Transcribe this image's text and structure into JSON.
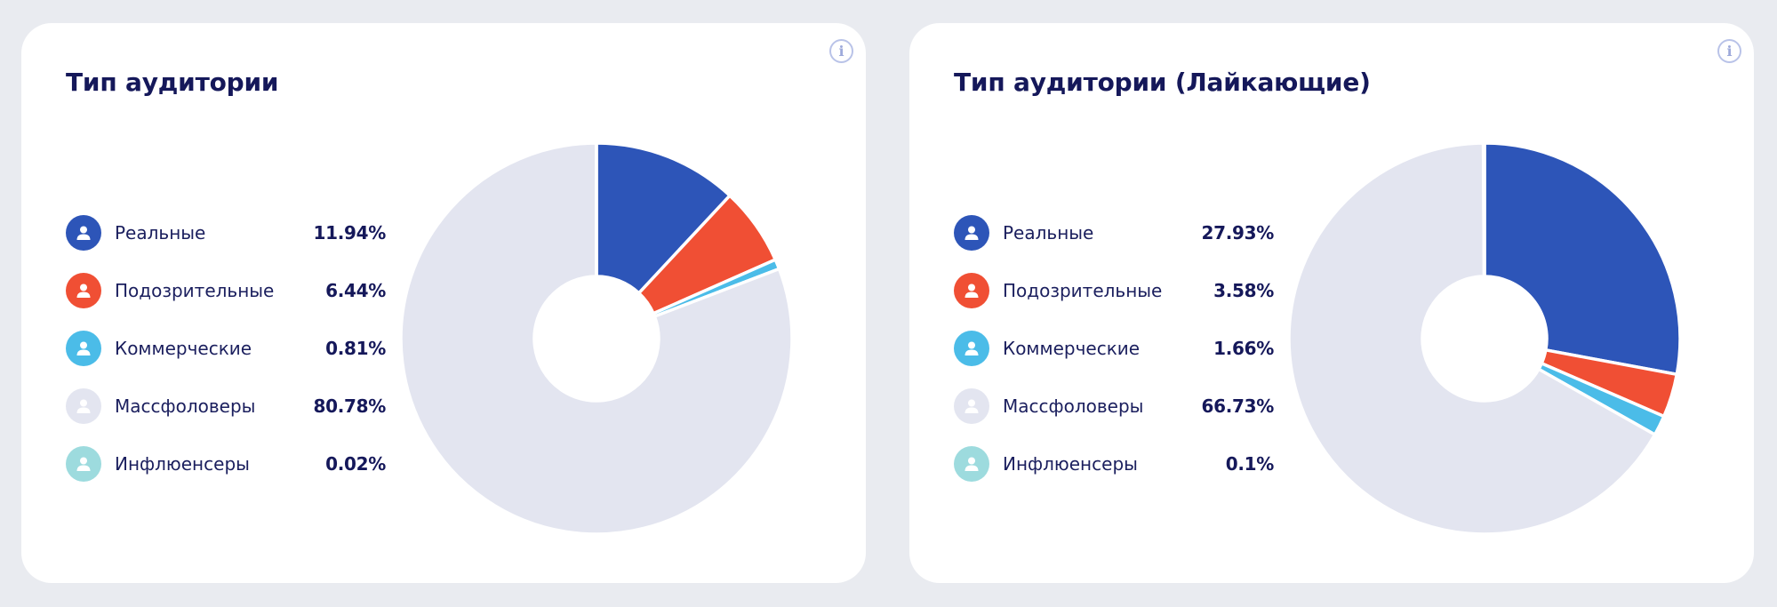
{
  "cards": [
    {
      "title": "Тип аудитории",
      "items": [
        {
          "label": "Реальные",
          "value": "11.94%",
          "color": "#2d55b8",
          "icon": "user-icon"
        },
        {
          "label": "Подозрительные",
          "value": "6.44%",
          "color": "#f04f34",
          "icon": "user-icon"
        },
        {
          "label": "Коммерческие",
          "value": "0.81%",
          "color": "#4bbce8",
          "icon": "user-icon"
        },
        {
          "label": "Массфоловеры",
          "value": "80.78%",
          "color": "#e3e5f0",
          "icon": "user-icon"
        },
        {
          "label": "Инфлюенсеры",
          "value": "0.02%",
          "color": "#9ddbde",
          "icon": "user-icon"
        }
      ]
    },
    {
      "title": "Тип аудитории (Лайкающие)",
      "items": [
        {
          "label": "Реальные",
          "value": "27.93%",
          "color": "#2d55b8",
          "icon": "user-icon"
        },
        {
          "label": "Подозрительные",
          "value": "3.58%",
          "color": "#f04f34",
          "icon": "user-icon"
        },
        {
          "label": "Коммерческие",
          "value": "1.66%",
          "color": "#4bbce8",
          "icon": "user-icon"
        },
        {
          "label": "Массфоловеры",
          "value": "66.73%",
          "color": "#e3e5f0",
          "icon": "user-icon"
        },
        {
          "label": "Инфлюенсеры",
          "value": "0.1%",
          "color": "#9ddbde",
          "icon": "user-icon"
        }
      ]
    }
  ],
  "chart_data": [
    {
      "type": "pie",
      "title": "Тип аудитории",
      "categories": [
        "Реальные",
        "Подозрительные",
        "Коммерческие",
        "Массфоловеры",
        "Инфлюенсеры"
      ],
      "values": [
        11.94,
        6.44,
        0.81,
        80.78,
        0.02
      ],
      "colors": [
        "#2d55b8",
        "#f04f34",
        "#4bbce8",
        "#e3e5f0",
        "#9ddbde"
      ],
      "legend": "left"
    },
    {
      "type": "pie",
      "title": "Тип аудитории (Лайкающие)",
      "categories": [
        "Реальные",
        "Подозрительные",
        "Коммерческие",
        "Массфоловеры",
        "Инфлюенсеры"
      ],
      "values": [
        27.93,
        3.58,
        1.66,
        66.73,
        0.1
      ],
      "colors": [
        "#2d55b8",
        "#f04f34",
        "#4bbce8",
        "#e3e5f0",
        "#9ddbde"
      ],
      "legend": "left"
    }
  ]
}
